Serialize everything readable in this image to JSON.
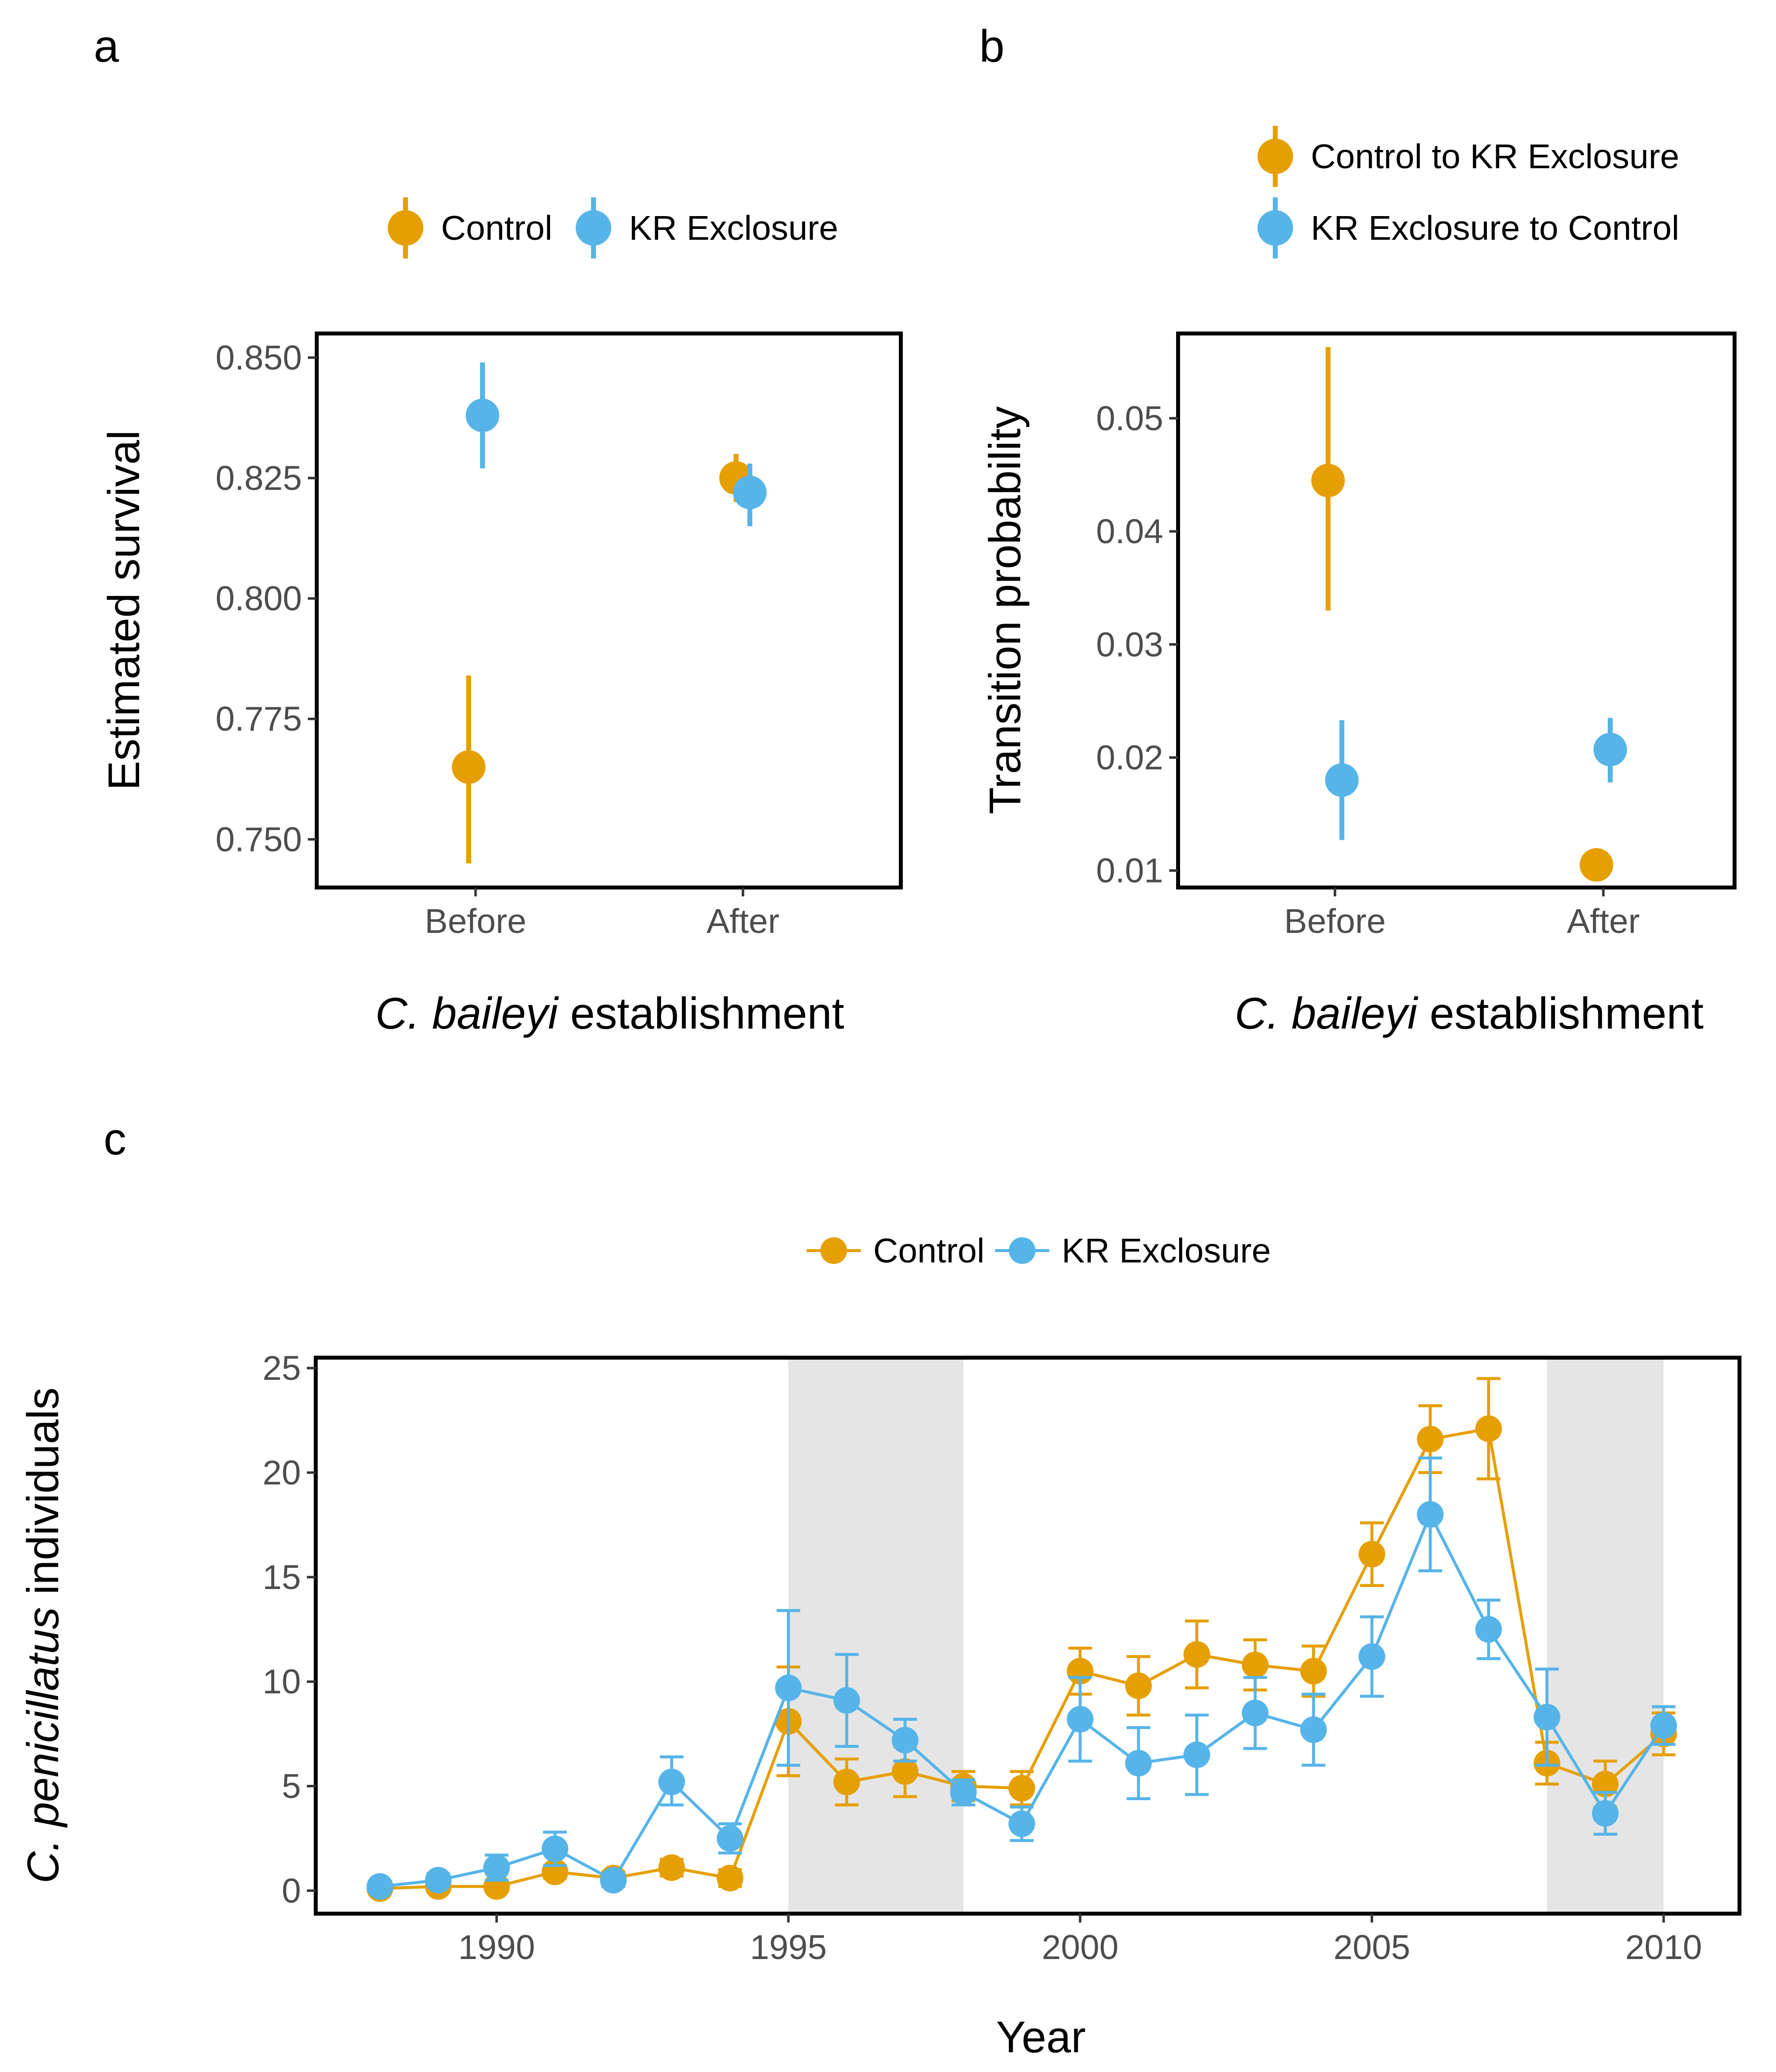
{
  "colors": {
    "control": "#E69F00",
    "exclosure": "#56B4E9",
    "shade": "#e5e5e5"
  },
  "panels": {
    "a": {
      "letter": "a"
    },
    "b": {
      "letter": "b"
    },
    "c": {
      "letter": "c"
    }
  },
  "chart_data": [
    {
      "id": "a",
      "type": "scatter",
      "categories": [
        "Before",
        "After"
      ],
      "xlabel_italic": "C. baileyi",
      "xlabel_rest": " establishment",
      "ylabel": "Estimated survival",
      "ylim": [
        0.74,
        0.855
      ],
      "yticks": [
        "0.750",
        "0.775",
        "0.800",
        "0.825",
        "0.850"
      ],
      "legend_position": "top",
      "series": [
        {
          "name": "Control",
          "color_key": "control",
          "points": [
            {
              "x": "Before",
              "y": 0.765,
              "lo": 0.745,
              "hi": 0.784
            },
            {
              "x": "After",
              "y": 0.825,
              "lo": 0.82,
              "hi": 0.83
            }
          ]
        },
        {
          "name": "KR Exclosure",
          "color_key": "exclosure",
          "points": [
            {
              "x": "Before",
              "y": 0.838,
              "lo": 0.827,
              "hi": 0.849
            },
            {
              "x": "After",
              "y": 0.822,
              "lo": 0.815,
              "hi": 0.828
            }
          ]
        }
      ]
    },
    {
      "id": "b",
      "type": "scatter",
      "categories": [
        "Before",
        "After"
      ],
      "xlabel_italic": "C. baileyi",
      "xlabel_rest": " establishment",
      "ylabel": "Transition probability",
      "ylim": [
        0.0085,
        0.0575
      ],
      "yticks": [
        "0.01",
        "0.02",
        "0.03",
        "0.04",
        "0.05"
      ],
      "legend_position": "top",
      "series": [
        {
          "name": "Control to KR Exclosure",
          "color_key": "control",
          "points": [
            {
              "x": "Before",
              "y": 0.0445,
              "lo": 0.033,
              "hi": 0.0563
            },
            {
              "x": "After",
              "y": 0.0105,
              "lo": null,
              "hi": null
            }
          ]
        },
        {
          "name": "KR Exclosure to Control",
          "color_key": "exclosure",
          "points": [
            {
              "x": "Before",
              "y": 0.018,
              "lo": 0.0127,
              "hi": 0.0233
            },
            {
              "x": "After",
              "y": 0.0207,
              "lo": 0.0178,
              "hi": 0.0235
            }
          ]
        }
      ]
    },
    {
      "id": "c",
      "type": "line",
      "x": [
        1988,
        1989,
        1990,
        1991,
        1992,
        1993,
        1994,
        1995,
        1996,
        1997,
        1998,
        1999,
        2000,
        2001,
        2002,
        2003,
        2004,
        2005,
        2006,
        2007,
        2008,
        2009,
        2010
      ],
      "xlabel": "Year",
      "ylabel_italic": "C. penicillatus",
      "ylabel_rest": " individuals",
      "xlim": [
        1986.9,
        2011.3
      ],
      "ylim": [
        -1.1,
        25.5
      ],
      "xticks": [
        "1990",
        "1995",
        "2000",
        "2005",
        "2010"
      ],
      "yticks": [
        "0",
        "5",
        "10",
        "15",
        "20",
        "25"
      ],
      "shaded_periods": [
        [
          1995,
          1998
        ],
        [
          2008,
          2010
        ]
      ],
      "legend_position": "top",
      "series": [
        {
          "name": "Control",
          "color_key": "control",
          "values": [
            0.1,
            0.2,
            0.2,
            0.9,
            0.6,
            1.1,
            0.6,
            8.1,
            5.2,
            5.7,
            5.0,
            4.9,
            10.5,
            9.8,
            11.3,
            10.8,
            10.5,
            16.1,
            21.6,
            22.1,
            6.1,
            5.1,
            7.5
          ],
          "lo": [
            0.0,
            0.0,
            0.0,
            0.6,
            0.3,
            0.7,
            0.2,
            5.5,
            4.1,
            4.5,
            4.3,
            4.1,
            9.4,
            8.4,
            9.7,
            9.6,
            9.3,
            14.6,
            20.0,
            19.7,
            5.1,
            4.0,
            6.5
          ],
          "hi": [
            0.2,
            0.4,
            0.4,
            1.2,
            0.9,
            1.5,
            1.0,
            10.7,
            6.3,
            6.9,
            5.7,
            5.7,
            11.6,
            11.2,
            12.9,
            12.0,
            11.7,
            17.6,
            23.2,
            24.5,
            7.1,
            6.2,
            8.5
          ]
        },
        {
          "name": "KR Exclosure",
          "color_key": "exclosure",
          "values": [
            0.2,
            0.5,
            1.1,
            2.0,
            0.5,
            5.2,
            2.5,
            9.7,
            9.1,
            7.2,
            4.7,
            3.2,
            8.2,
            6.1,
            6.5,
            8.5,
            7.7,
            11.2,
            18.0,
            12.5,
            8.3,
            3.7,
            7.9
          ],
          "lo": [
            0.0,
            0.2,
            0.5,
            1.2,
            0.2,
            4.1,
            1.8,
            6.0,
            6.9,
            6.2,
            4.1,
            2.4,
            6.2,
            4.4,
            4.6,
            6.8,
            6.0,
            9.3,
            15.3,
            11.1,
            6.0,
            2.7,
            7.0
          ],
          "hi": [
            0.4,
            0.8,
            1.7,
            2.8,
            0.8,
            6.4,
            3.2,
            13.4,
            11.3,
            8.2,
            5.3,
            4.0,
            10.2,
            7.8,
            8.4,
            10.2,
            9.4,
            13.1,
            20.7,
            13.9,
            10.6,
            4.7,
            8.8
          ]
        }
      ]
    }
  ]
}
